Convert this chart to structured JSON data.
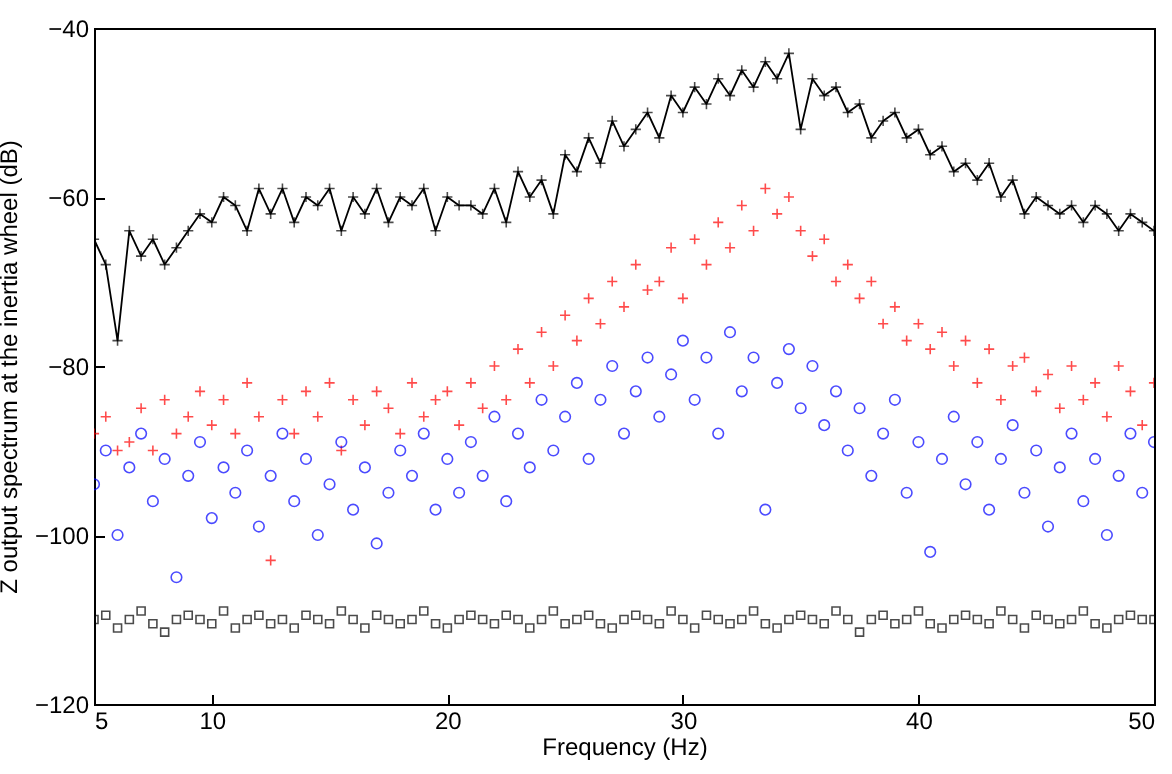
{
  "chart_data": {
    "type": "scatter",
    "xlabel": "Frequency (Hz)",
    "ylabel": "Z output spectrum at the inertia wheel (dB)",
    "xlim": [
      5,
      50
    ],
    "ylim": [
      -120,
      -40
    ],
    "xticks": [
      5,
      10,
      20,
      30,
      40,
      50
    ],
    "yticks": [
      -120,
      -100,
      -80,
      -60,
      -40
    ],
    "x": [
      5,
      5.5,
      6,
      6.5,
      7,
      7.5,
      8,
      8.5,
      9,
      9.5,
      10,
      10.5,
      11,
      11.5,
      12,
      12.5,
      13,
      13.5,
      14,
      14.5,
      15,
      15.5,
      16,
      16.5,
      17,
      17.5,
      18,
      18.5,
      19,
      19.5,
      20,
      20.5,
      21,
      21.5,
      22,
      22.5,
      23,
      23.5,
      24,
      24.5,
      25,
      25.5,
      26,
      26.5,
      27,
      27.5,
      28,
      28.5,
      29,
      29.5,
      30,
      30.5,
      31,
      31.5,
      32,
      32.5,
      33,
      33.5,
      34,
      34.5,
      35,
      35.5,
      36,
      36.5,
      37,
      37.5,
      38,
      38.5,
      39,
      39.5,
      40,
      40.5,
      41,
      41.5,
      42,
      42.5,
      43,
      43.5,
      44,
      44.5,
      45,
      45.5,
      46,
      46.5,
      47,
      47.5,
      48,
      48.5,
      49,
      49.5,
      50
    ],
    "series": [
      {
        "type": "line",
        "marker": "cross",
        "color": "#000000",
        "values": [
          -65,
          -68,
          -77,
          -64,
          -67,
          -65,
          -68,
          -66,
          -64,
          -62,
          -63,
          -60,
          -61,
          -64,
          -59,
          -62,
          -59,
          -63,
          -60,
          -61,
          -59,
          -64,
          -60,
          -62,
          -59,
          -63,
          -60,
          -61,
          -59,
          -64,
          -60,
          -61,
          -61,
          -62,
          -59,
          -63,
          -57,
          -60,
          -58,
          -62,
          -55,
          -57,
          -53,
          -56,
          -51,
          -54,
          -52,
          -50,
          -53,
          -48,
          -50,
          -47,
          -49,
          -46,
          -48,
          -45,
          -47,
          -44,
          -46,
          -43,
          -52,
          -46,
          -48,
          -47,
          -50,
          -49,
          -53,
          -51,
          -50,
          -53,
          -52,
          -55,
          -54,
          -57,
          -56,
          -58,
          -56,
          -60,
          -58,
          -62,
          -60,
          -61,
          -62,
          -61,
          -63,
          -61,
          -62,
          -64,
          -62,
          -63,
          -64
        ]
      },
      {
        "marker": "cross",
        "color": "#ff0000",
        "values": [
          -88,
          -86,
          -90,
          -89,
          -85,
          -90,
          -84,
          -88,
          -86,
          -83,
          -87,
          -84,
          -88,
          -82,
          -86,
          -103,
          -84,
          -88,
          -83,
          -86,
          -82,
          -90,
          -84,
          -87,
          -83,
          -85,
          -88,
          -82,
          -86,
          -84,
          -83,
          -87,
          -82,
          -85,
          -80,
          -84,
          -78,
          -82,
          -76,
          -80,
          -74,
          -77,
          -72,
          -75,
          -70,
          -73,
          -68,
          -71,
          -70,
          -66,
          -72,
          -65,
          -68,
          -63,
          -66,
          -61,
          -64,
          -59,
          -62,
          -60,
          -64,
          -67,
          -65,
          -70,
          -68,
          -72,
          -70,
          -75,
          -73,
          -77,
          -75,
          -78,
          -76,
          -80,
          -77,
          -82,
          -78,
          -84,
          -80,
          -79,
          -83,
          -81,
          -85,
          -80,
          -84,
          -82,
          -86,
          -80,
          -83,
          -87,
          -82
        ]
      },
      {
        "marker": "circle",
        "color": "#0000ff",
        "values": [
          -94,
          -90,
          -100,
          -92,
          -88,
          -96,
          -91,
          -105,
          -93,
          -89,
          -98,
          -92,
          -95,
          -90,
          -99,
          -93,
          -88,
          -96,
          -91,
          -100,
          -94,
          -89,
          -97,
          -92,
          -101,
          -95,
          -90,
          -93,
          -88,
          -97,
          -91,
          -95,
          -89,
          -93,
          -86,
          -96,
          -88,
          -92,
          -84,
          -90,
          -86,
          -82,
          -91,
          -84,
          -80,
          -88,
          -83,
          -79,
          -86,
          -81,
          -77,
          -84,
          -79,
          -88,
          -76,
          -83,
          -79,
          -97,
          -82,
          -78,
          -85,
          -80,
          -87,
          -83,
          -90,
          -85,
          -93,
          -88,
          -84,
          -95,
          -89,
          -102,
          -91,
          -86,
          -94,
          -89,
          -97,
          -91,
          -87,
          -95,
          -90,
          -99,
          -92,
          -88,
          -96,
          -91,
          -100,
          -93,
          -88,
          -95,
          -89
        ]
      },
      {
        "marker": "square",
        "color": "#000000",
        "values": [
          -110,
          -109.5,
          -111,
          -110,
          -109,
          -110.5,
          -111.5,
          -110,
          -109.5,
          -110,
          -110.5,
          -109,
          -111,
          -110,
          -109.5,
          -110.5,
          -110,
          -111,
          -109.5,
          -110,
          -110.5,
          -109,
          -110,
          -111,
          -109.5,
          -110,
          -110.5,
          -110,
          -109,
          -110.5,
          -111,
          -110,
          -109.5,
          -110,
          -110.5,
          -109.5,
          -110,
          -111,
          -110,
          -109,
          -110.5,
          -110,
          -109.5,
          -110.5,
          -111,
          -110,
          -109.5,
          -110,
          -110.5,
          -109,
          -110,
          -111,
          -109.5,
          -110,
          -110.5,
          -110,
          -109,
          -110.5,
          -111,
          -110,
          -109.5,
          -110,
          -110.5,
          -109,
          -110,
          -111.5,
          -110,
          -109.5,
          -110.5,
          -110,
          -109,
          -110.5,
          -111,
          -110,
          -109.5,
          -110,
          -110.5,
          -109,
          -110,
          -111,
          -109.5,
          -110,
          -110.5,
          -110,
          -109,
          -110.5,
          -111,
          -110,
          -109.5,
          -110,
          -110
        ]
      }
    ]
  }
}
